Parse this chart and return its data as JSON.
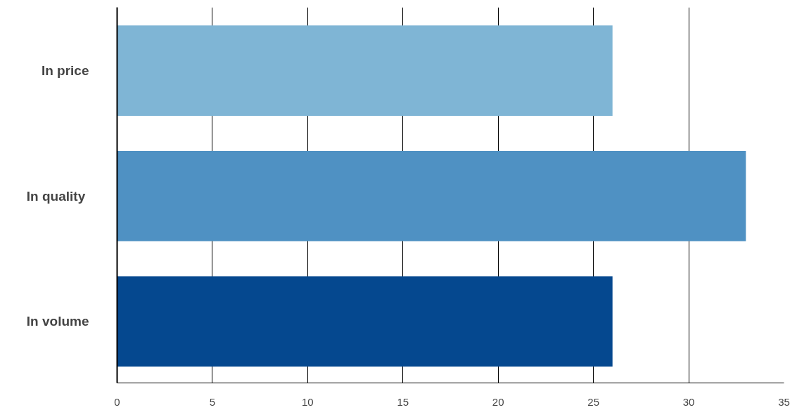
{
  "chart_data": {
    "type": "bar",
    "orientation": "horizontal",
    "categories": [
      "In price",
      "In  quality",
      "In volume"
    ],
    "values": [
      26,
      33,
      26
    ],
    "colors": [
      "#7fb5d5",
      "#4f91c3",
      "#05488f"
    ],
    "xlim": [
      0,
      35
    ],
    "xticks": [
      0,
      5,
      10,
      15,
      20,
      25,
      30,
      35
    ],
    "grid": "x"
  }
}
